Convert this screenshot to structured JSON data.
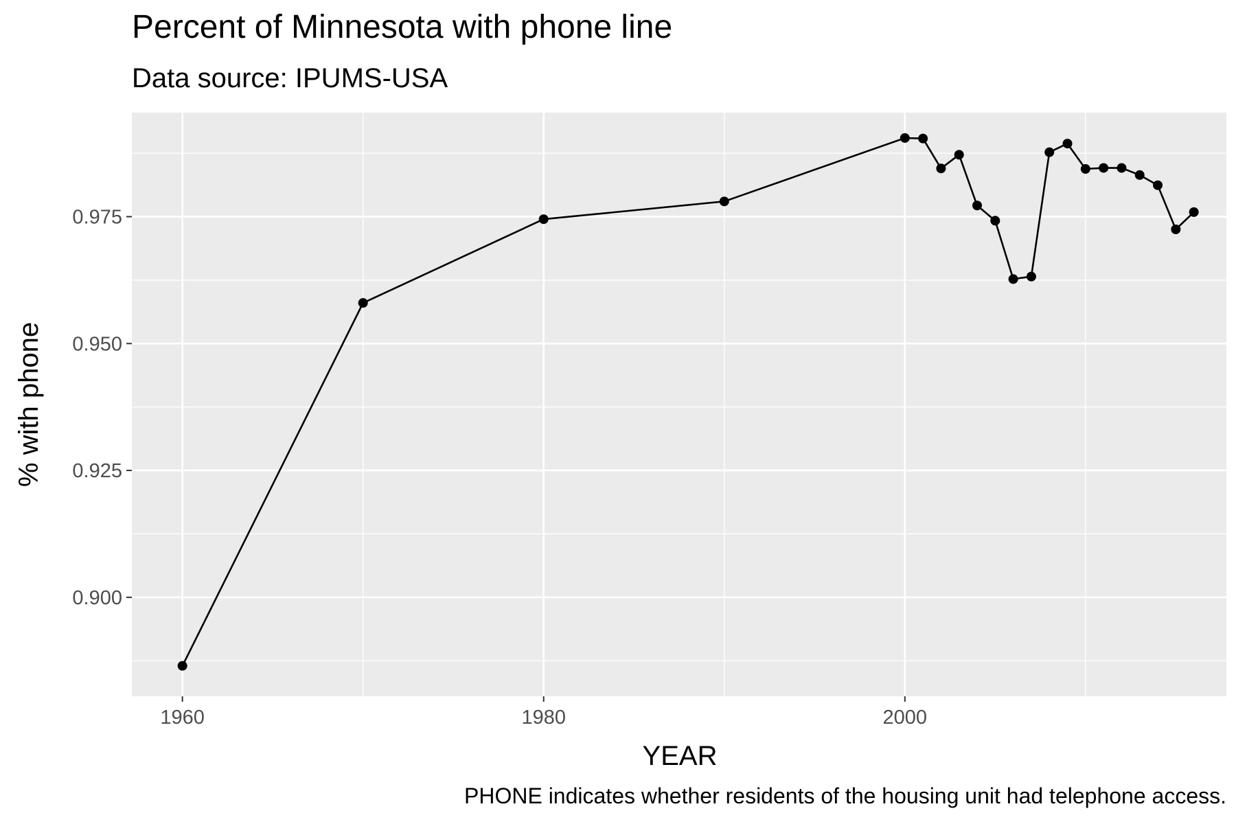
{
  "chart_data": {
    "type": "line",
    "title": "Percent of Minnesota with phone line",
    "subtitle": "Data source: IPUMS-USA",
    "caption": "PHONE indicates whether residents of the housing unit had telephone access.",
    "xlabel": "YEAR",
    "ylabel": "% with phone",
    "xlim": [
      1957.2,
      2017.8
    ],
    "ylim": [
      0.8805,
      0.9955
    ],
    "x_ticks": [
      1960,
      1980,
      2000
    ],
    "y_ticks": [
      0.9,
      0.925,
      0.95,
      0.975
    ],
    "y_tick_labels": [
      "0.900",
      "0.925",
      "0.950",
      "0.975"
    ],
    "grid": true,
    "points_shown": true,
    "colors": {
      "panel": "#ebebeb",
      "grid": "#ffffff",
      "series": "#000000",
      "tick_text": "#4d4d4d",
      "tick_mark": "#333333"
    },
    "series": [
      {
        "x": [
          1960,
          1970,
          1980,
          1990,
          2000,
          2001,
          2002,
          2003,
          2004,
          2005,
          2006,
          2007,
          2008,
          2009,
          2010,
          2011,
          2012,
          2013,
          2014,
          2015,
          2016
        ],
        "y": [
          0.8865,
          0.958,
          0.9745,
          0.978,
          0.9905,
          0.9904,
          0.9845,
          0.9872,
          0.9772,
          0.9742,
          0.9627,
          0.9632,
          0.9877,
          0.9894,
          0.9844,
          0.9846,
          0.9846,
          0.9832,
          0.9812,
          0.9725,
          0.9759
        ]
      }
    ]
  }
}
